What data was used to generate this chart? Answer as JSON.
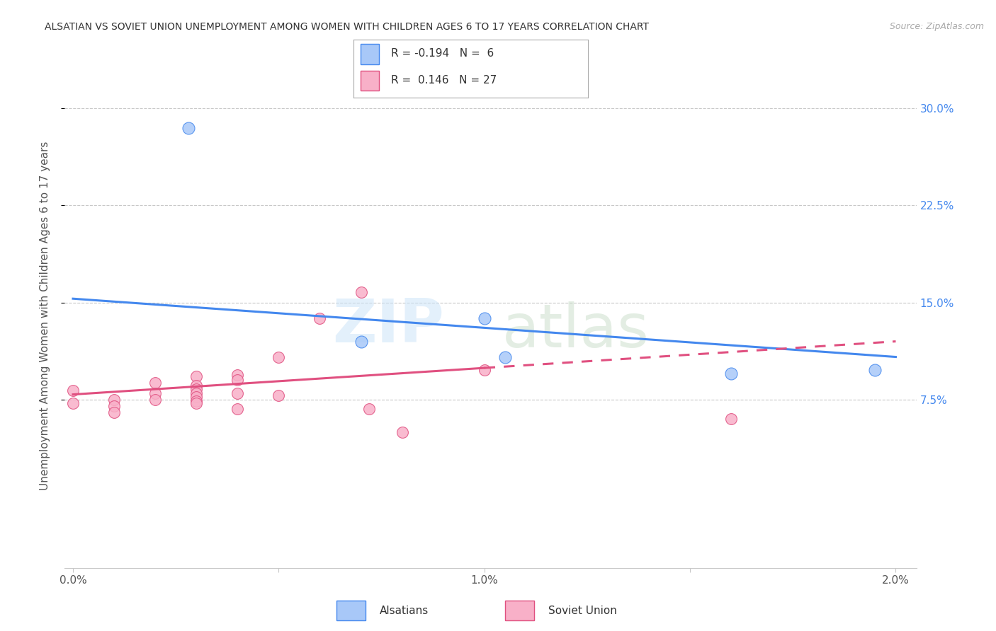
{
  "title": "ALSATIAN VS SOVIET UNION UNEMPLOYMENT AMONG WOMEN WITH CHILDREN AGES 6 TO 17 YEARS CORRELATION CHART",
  "source": "Source: ZipAtlas.com",
  "ylabel": "Unemployment Among Women with Children Ages 6 to 17 years",
  "xlim": [
    -0.0002,
    0.0205
  ],
  "ylim": [
    -0.055,
    0.335
  ],
  "yticks": [
    0.075,
    0.15,
    0.225,
    0.3
  ],
  "ytick_labels": [
    "7.5%",
    "15.0%",
    "22.5%",
    "30.0%"
  ],
  "xticks": [
    0.0,
    0.005,
    0.01,
    0.015,
    0.02
  ],
  "xtick_labels": [
    "0.0%",
    "",
    "1.0%",
    "",
    "2.0%"
  ],
  "alsatian_x": [
    0.0028,
    0.007,
    0.01,
    0.0105,
    0.016,
    0.0195
  ],
  "alsatian_y": [
    0.285,
    0.12,
    0.138,
    0.108,
    0.095,
    0.098
  ],
  "soviet_x": [
    0.0,
    0.0,
    0.001,
    0.001,
    0.001,
    0.002,
    0.002,
    0.002,
    0.003,
    0.003,
    0.003,
    0.003,
    0.003,
    0.003,
    0.003,
    0.004,
    0.004,
    0.004,
    0.004,
    0.005,
    0.005,
    0.006,
    0.007,
    0.0072,
    0.008,
    0.01,
    0.016
  ],
  "soviet_y": [
    0.082,
    0.072,
    0.075,
    0.07,
    0.065,
    0.088,
    0.08,
    0.075,
    0.093,
    0.086,
    0.083,
    0.08,
    0.077,
    0.074,
    0.072,
    0.094,
    0.09,
    0.08,
    0.068,
    0.108,
    0.078,
    0.138,
    0.158,
    0.068,
    0.05,
    0.098,
    0.06
  ],
  "alsatian_color": "#a8c8f8",
  "soviet_color": "#f8b0c8",
  "trend_alsatian_color": "#4488ee",
  "trend_soviet_color": "#e05080",
  "trend_blue_x0": 0.0,
  "trend_blue_y0": 0.153,
  "trend_blue_x1": 0.02,
  "trend_blue_y1": 0.108,
  "trend_pink_x0": 0.0,
  "trend_pink_y0": 0.079,
  "trend_pink_x1": 0.02,
  "trend_pink_y1": 0.12,
  "trend_pink_solid_end": 0.01,
  "legend_r_alsatian": "-0.194",
  "legend_n_alsatian": "6",
  "legend_r_soviet": "0.146",
  "legend_n_soviet": "27",
  "background_color": "#ffffff",
  "grid_color": "#c8c8c8"
}
